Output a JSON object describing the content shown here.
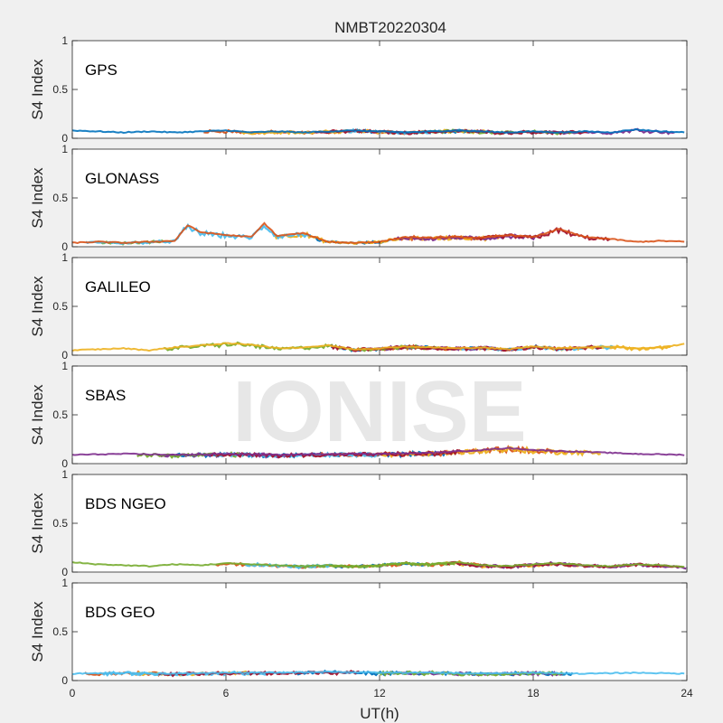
{
  "figure": {
    "title": "NMBT20220304",
    "watermark": "IONISE",
    "xlabel": "UT(h)",
    "background": "#f0f0f0",
    "axes_background": "#ffffff",
    "series_colors": [
      "#0072bd",
      "#d95319",
      "#edb120",
      "#7e2f8e",
      "#77ac30",
      "#4dbeee",
      "#a2142f"
    ]
  },
  "chart_data": [
    {
      "type": "scatter",
      "title": "GPS",
      "xlabel": "",
      "ylabel": "S4 Index",
      "xlim": [
        0,
        24
      ],
      "ylim": [
        0,
        1
      ],
      "xticks": [
        0,
        6,
        12,
        18,
        24
      ],
      "yticks": [
        0,
        0.5,
        1
      ],
      "grid": false,
      "series": [
        {
          "values_x": [
            0,
            1,
            2,
            3,
            4,
            5,
            6,
            7,
            8,
            9,
            10,
            11,
            12,
            13,
            14,
            15,
            16,
            17,
            18,
            19,
            20,
            21,
            22,
            23,
            24
          ],
          "values_y": [
            0.08,
            0.07,
            0.06,
            0.07,
            0.06,
            0.07,
            0.08,
            0.06,
            0.07,
            0.06,
            0.07,
            0.08,
            0.07,
            0.06,
            0.07,
            0.08,
            0.07,
            0.06,
            0.07,
            0.06,
            0.07,
            0.06,
            0.09,
            0.07,
            0.06
          ]
        }
      ]
    },
    {
      "type": "scatter",
      "title": "GLONASS",
      "xlabel": "",
      "ylabel": "S4 Index",
      "xlim": [
        0,
        24
      ],
      "ylim": [
        0,
        1
      ],
      "xticks": [
        0,
        6,
        12,
        18,
        24
      ],
      "yticks": [
        0,
        0.5,
        1
      ],
      "grid": false,
      "series": [
        {
          "values_x": [
            0,
            1,
            2,
            3,
            4,
            4.5,
            5,
            6,
            7,
            7.5,
            8,
            9,
            10,
            11,
            12,
            13,
            14,
            15,
            16,
            17,
            18,
            19,
            20,
            21,
            22,
            23,
            24
          ],
          "values_y": [
            0.04,
            0.05,
            0.04,
            0.05,
            0.06,
            0.22,
            0.15,
            0.12,
            0.1,
            0.24,
            0.11,
            0.14,
            0.05,
            0.04,
            0.05,
            0.1,
            0.09,
            0.1,
            0.09,
            0.12,
            0.1,
            0.18,
            0.1,
            0.08,
            0.05,
            0.06,
            0.05
          ]
        }
      ]
    },
    {
      "type": "scatter",
      "title": "GALILEO",
      "xlabel": "",
      "ylabel": "S4 Index",
      "xlim": [
        0,
        24
      ],
      "ylim": [
        0,
        1
      ],
      "xticks": [
        0,
        6,
        12,
        18,
        24
      ],
      "yticks": [
        0,
        0.5,
        1
      ],
      "grid": false,
      "series": [
        {
          "values_x": [
            0,
            1,
            2,
            3,
            4,
            5,
            6,
            7,
            8,
            9,
            10,
            11,
            12,
            13,
            14,
            15,
            16,
            17,
            18,
            19,
            20,
            21,
            22,
            23,
            24
          ],
          "values_y": [
            0.05,
            0.06,
            0.07,
            0.05,
            0.08,
            0.1,
            0.12,
            0.11,
            0.07,
            0.08,
            0.1,
            0.06,
            0.07,
            0.09,
            0.08,
            0.07,
            0.08,
            0.06,
            0.09,
            0.07,
            0.08,
            0.09,
            0.07,
            0.08,
            0.12
          ]
        }
      ]
    },
    {
      "type": "scatter",
      "title": "SBAS",
      "xlabel": "",
      "ylabel": "S4 Index",
      "xlim": [
        0,
        24
      ],
      "ylim": [
        0,
        1
      ],
      "xticks": [
        0,
        6,
        12,
        18,
        24
      ],
      "yticks": [
        0,
        0.5,
        1
      ],
      "grid": false,
      "series": [
        {
          "values_x": [
            0,
            2,
            4,
            6,
            8,
            10,
            12,
            14,
            16,
            17,
            18,
            20,
            22,
            24
          ],
          "values_y": [
            0.09,
            0.1,
            0.09,
            0.1,
            0.09,
            0.1,
            0.1,
            0.11,
            0.14,
            0.16,
            0.14,
            0.12,
            0.1,
            0.09
          ]
        }
      ]
    },
    {
      "type": "scatter",
      "title": "BDS NGEO",
      "xlabel": "",
      "ylabel": "S4 Index",
      "xlim": [
        0,
        24
      ],
      "ylim": [
        0,
        1
      ],
      "xticks": [
        0,
        6,
        12,
        18,
        24
      ],
      "yticks": [
        0,
        0.5,
        1
      ],
      "grid": false,
      "series": [
        {
          "values_x": [
            0,
            1,
            2,
            3,
            4,
            5,
            6,
            7,
            8,
            9,
            10,
            11,
            12,
            13,
            14,
            15,
            16,
            17,
            18,
            19,
            20,
            21,
            22,
            23,
            24
          ],
          "values_y": [
            0.1,
            0.08,
            0.07,
            0.06,
            0.08,
            0.07,
            0.09,
            0.08,
            0.07,
            0.06,
            0.07,
            0.06,
            0.07,
            0.09,
            0.08,
            0.1,
            0.07,
            0.06,
            0.08,
            0.09,
            0.07,
            0.06,
            0.08,
            0.07,
            0.05
          ]
        }
      ]
    },
    {
      "type": "scatter",
      "title": "BDS GEO",
      "xlabel": "UT(h)",
      "ylabel": "S4 Index",
      "xlim": [
        0,
        24
      ],
      "ylim": [
        0,
        1
      ],
      "xticks": [
        0,
        6,
        12,
        18,
        24
      ],
      "yticks": [
        0,
        0.5,
        1
      ],
      "grid": false,
      "series": [
        {
          "values_x": [
            0,
            2,
            4,
            6,
            8,
            10,
            12,
            14,
            16,
            18,
            20,
            22,
            24
          ],
          "values_y": [
            0.07,
            0.08,
            0.07,
            0.08,
            0.08,
            0.09,
            0.08,
            0.08,
            0.07,
            0.08,
            0.07,
            0.08,
            0.07
          ]
        }
      ]
    }
  ]
}
